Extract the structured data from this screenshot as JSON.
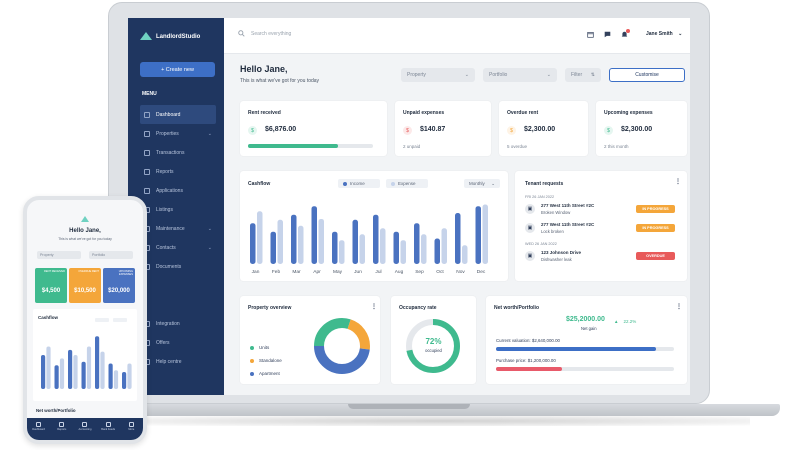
{
  "brand": "LandlordStudio",
  "sidebar": {
    "new_button": "+ Create new",
    "menu_label": "MENU",
    "items": [
      {
        "label": "Dashboard",
        "icon": "grid-icon",
        "active": true
      },
      {
        "label": "Properties",
        "icon": "home-icon",
        "chevron": true
      },
      {
        "label": "Transactions",
        "icon": "list-icon"
      },
      {
        "label": "Reports",
        "icon": "report-icon"
      },
      {
        "label": "Applications",
        "icon": "document-icon"
      },
      {
        "label": "Listings",
        "icon": "listing-icon"
      },
      {
        "label": "Maintenance",
        "icon": "wrench-icon",
        "chevron": true
      },
      {
        "label": "Contacts",
        "icon": "people-icon",
        "chevron": true
      },
      {
        "label": "Documents",
        "icon": "folder-icon"
      }
    ],
    "bottom_items": [
      {
        "label": "Integration",
        "icon": "plug-icon"
      },
      {
        "label": "Offers",
        "icon": "tag-icon"
      },
      {
        "label": "Help centre",
        "icon": "help-icon"
      }
    ]
  },
  "topbar": {
    "search_placeholder": "Search everything",
    "user_name": "Jane Smith"
  },
  "greeting": {
    "title": "Hello Jane,",
    "subtitle": "This is what we've got for you today"
  },
  "filters": {
    "property": "Property",
    "portfolio": "Portfolio",
    "filter": "Filter",
    "customise": "Customise"
  },
  "stats": [
    {
      "title": "Rent received",
      "value": "$6,876.00",
      "progress": 0.72,
      "color": "#3fba8e"
    },
    {
      "title": "Unpaid expenses",
      "value": "$140.87",
      "sub": "2 unpaid",
      "color": "#e85a5a"
    },
    {
      "title": "Overdue rent",
      "value": "$2,300.00",
      "sub": "5 overdue",
      "color": "#f4a63a"
    },
    {
      "title": "Upcoming expenses",
      "value": "$2,300.00",
      "sub": "2 this month",
      "color": "#3fba8e"
    }
  ],
  "cashflow": {
    "title": "Cashflow",
    "legend_income": "Income",
    "legend_expense": "Expense",
    "period": "Monthly",
    "months": [
      "Jan",
      "Feb",
      "Mar",
      "Apr",
      "May",
      "Jun",
      "Jul",
      "Aug",
      "Sep",
      "Oct",
      "Nov",
      "Dec"
    ]
  },
  "chart_data": {
    "type": "bar",
    "categories": [
      "Jan",
      "Feb",
      "Mar",
      "Apr",
      "May",
      "Jun",
      "Jul",
      "Aug",
      "Sep",
      "Oct",
      "Nov",
      "Dec"
    ],
    "series": [
      {
        "name": "Income",
        "color": "#4a72c0",
        "values": [
          48,
          38,
          58,
          68,
          38,
          52,
          58,
          38,
          48,
          30,
          60,
          68
        ]
      },
      {
        "name": "Expense",
        "color": "#c6d3ea",
        "values": [
          62,
          52,
          45,
          53,
          28,
          35,
          42,
          28,
          35,
          42,
          22,
          70
        ]
      }
    ],
    "ylim": [
      0,
      80
    ]
  },
  "tenant_requests": {
    "title": "Tenant requests",
    "groups": [
      {
        "date": "FRI 26 JAN 2022",
        "items": [
          {
            "address": "277 West 11th Street #2C",
            "issue": "Broken Window",
            "status": "IN PROGRESS",
            "status_color": "#f4a63a"
          },
          {
            "address": "277 West 11th Street #2C",
            "issue": "Lock broken",
            "status": "IN PROGRESS",
            "status_color": "#f4a63a"
          }
        ]
      },
      {
        "date": "WED 26 JAN 2022",
        "items": [
          {
            "address": "123 Johnson Drive",
            "issue": "Dishwasher leak",
            "status": "OVERDUE",
            "status_color": "#e85a5a"
          }
        ]
      }
    ]
  },
  "property_overview": {
    "title": "Property overview",
    "legend": [
      {
        "label": "Units",
        "color": "#3fba8e",
        "share": 0.3
      },
      {
        "label": "Standalone",
        "color": "#f4a63a",
        "share": 0.22
      },
      {
        "label": "Apartment",
        "color": "#4a72c0",
        "share": 0.48
      }
    ]
  },
  "occupancy": {
    "title": "Occupancy rate",
    "value": "72%",
    "label": "occupied",
    "share": 0.72
  },
  "networth": {
    "title": "Net worth/Portfolio",
    "value": "$25,2000.00",
    "value_label": "Net gain",
    "change": "22.2%",
    "current_label": "Current valuation: $2,640,000.00",
    "current_share": 0.9,
    "purchase_label": "Purchase price: $1,200,000.00",
    "purchase_share": 0.37
  },
  "phone": {
    "hello": "Hello Jane,",
    "sub": "This is what we've got for you today",
    "filter_property": "Property",
    "filter_portfolio": "Portfolio",
    "tiles": [
      {
        "label": "RENT RECEIVED",
        "value": "$4,500",
        "color": "#3fba8e"
      },
      {
        "label": "OVERDUE RENT",
        "value": "$10,500",
        "color": "#f4a63a"
      },
      {
        "label": "UPCOMING EXPENSES",
        "value": "$20,000",
        "color": "#4a72c0"
      }
    ],
    "cashflow_title": "Cashflow",
    "cashflow_income": [
      40,
      28,
      46,
      32,
      62,
      30,
      20
    ],
    "cashflow_expense": [
      50,
      36,
      40,
      50,
      44,
      22,
      30
    ],
    "networth_title": "Net worth/Portfolio",
    "tabs": [
      "Dashboard",
      "Reports",
      "Accounting",
      "Bank Feeds",
      "More"
    ]
  }
}
